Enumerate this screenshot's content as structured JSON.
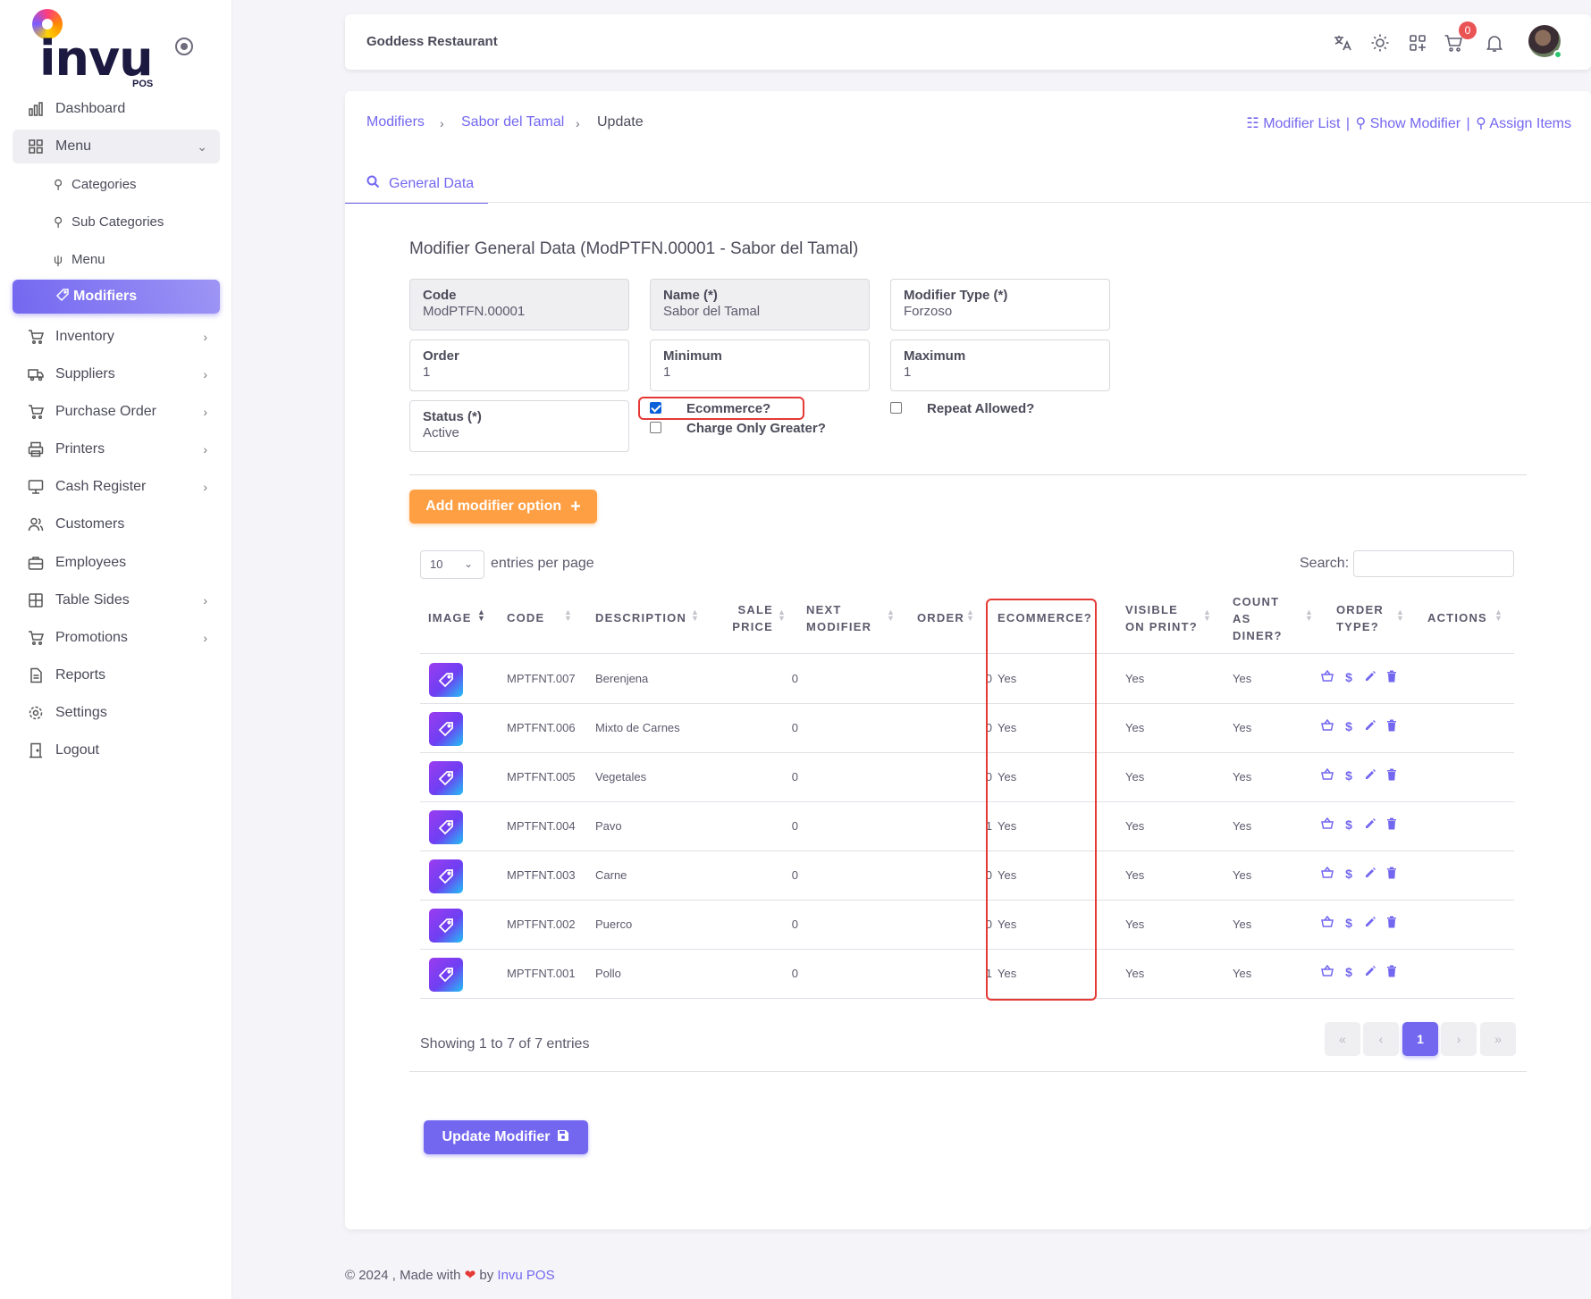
{
  "app": {
    "logo_text": "invu",
    "logo_sub": "POS",
    "restaurant": "Goddess Restaurant",
    "cart_count": "0"
  },
  "sidebar": {
    "items": [
      {
        "label": "Dashboard",
        "icon": "chart-icon"
      },
      {
        "label": "Menu",
        "icon": "grid-icon"
      },
      {
        "label": "Categories",
        "icon": "sitemap-icon"
      },
      {
        "label": "Sub Categories",
        "icon": "sitemap-icon"
      },
      {
        "label": "Menu",
        "icon": "utensils-icon"
      },
      {
        "label": "Modifiers",
        "icon": "tag-icon"
      },
      {
        "label": "Inventory",
        "icon": "cart-icon"
      },
      {
        "label": "Suppliers",
        "icon": "truck-icon"
      },
      {
        "label": "Purchase Order",
        "icon": "cart-icon"
      },
      {
        "label": "Printers",
        "icon": "printer-icon"
      },
      {
        "label": "Cash Register",
        "icon": "register-icon"
      },
      {
        "label": "Customers",
        "icon": "users-icon"
      },
      {
        "label": "Employees",
        "icon": "briefcase-icon"
      },
      {
        "label": "Table Sides",
        "icon": "table-icon"
      },
      {
        "label": "Promotions",
        "icon": "cart-icon"
      },
      {
        "label": "Reports",
        "icon": "file-icon"
      },
      {
        "label": "Settings",
        "icon": "gear-icon"
      },
      {
        "label": "Logout",
        "icon": "door-icon"
      }
    ]
  },
  "breadcrumb": {
    "first": "Modifiers",
    "second": "Sabor del Tamal",
    "current": "Update"
  },
  "toplinks": {
    "list": "Modifier List",
    "show": "Show Modifier",
    "assign": "Assign Items",
    "separator": "|"
  },
  "tab": {
    "label": "General Data"
  },
  "section_title": "Modifier General Data (ModPTFN.00001 - Sabor del Tamal)",
  "form": {
    "code": {
      "label": "Code",
      "value": "ModPTFN.00001"
    },
    "name": {
      "label": "Name (*)",
      "value": "Sabor del Tamal"
    },
    "type": {
      "label": "Modifier Type (*)",
      "value": "Forzoso"
    },
    "order": {
      "label": "Order",
      "value": "1"
    },
    "minimum": {
      "label": "Minimum",
      "value": "1"
    },
    "maximum": {
      "label": "Maximum",
      "value": "1"
    },
    "status": {
      "label": "Status (*)",
      "value": "Active"
    },
    "ecommerce": {
      "label": "Ecommerce?",
      "checked": true
    },
    "charge_only_greater": {
      "label": "Charge Only Greater?",
      "checked": false
    },
    "repeat_allowed": {
      "label": "Repeat Allowed?",
      "checked": false
    }
  },
  "add_option_button": "Add modifier option",
  "table": {
    "entries_value": "10",
    "entries_label": "entries per page",
    "search_label": "Search:",
    "headers": {
      "image": "IMAGE",
      "code": "CODE",
      "description": "DESCRIPTION",
      "sale_price_1": "SALE",
      "sale_price_2": "PRICE",
      "next_modifier_1": "NEXT",
      "next_modifier_2": "MODIFIER",
      "order": "ORDER",
      "ecommerce": "ECOMMERCE?",
      "visible_1": "VISIBLE",
      "visible_2": "ON PRINT?",
      "count_1": "COUNT",
      "count_2": "AS",
      "count_3": "DINER?",
      "order_type_1": "ORDER",
      "order_type_2": "TYPE?",
      "actions": "ACTIONS"
    },
    "rows": [
      {
        "code": "MPTFNT.007",
        "description": "Berenjena",
        "sale_price": "0",
        "order": "0",
        "ecommerce": "Yes",
        "visible": "Yes",
        "count": "Yes"
      },
      {
        "code": "MPTFNT.006",
        "description": "Mixto de Carnes",
        "sale_price": "0",
        "order": "0",
        "ecommerce": "Yes",
        "visible": "Yes",
        "count": "Yes"
      },
      {
        "code": "MPTFNT.005",
        "description": "Vegetales",
        "sale_price": "0",
        "order": "0",
        "ecommerce": "Yes",
        "visible": "Yes",
        "count": "Yes"
      },
      {
        "code": "MPTFNT.004",
        "description": "Pavo",
        "sale_price": "0",
        "order": "1",
        "ecommerce": "Yes",
        "visible": "Yes",
        "count": "Yes"
      },
      {
        "code": "MPTFNT.003",
        "description": "Carne",
        "sale_price": "0",
        "order": "0",
        "ecommerce": "Yes",
        "visible": "Yes",
        "count": "Yes"
      },
      {
        "code": "MPTFNT.002",
        "description": "Puerco",
        "sale_price": "0",
        "order": "0",
        "ecommerce": "Yes",
        "visible": "Yes",
        "count": "Yes"
      },
      {
        "code": "MPTFNT.001",
        "description": "Pollo",
        "sale_price": "0",
        "order": "1",
        "ecommerce": "Yes",
        "visible": "Yes",
        "count": "Yes"
      }
    ],
    "showing": "Showing 1 to 7 of 7 entries",
    "pagination": {
      "first": "«",
      "prev": "‹",
      "current": "1",
      "next": "›",
      "last": "»"
    }
  },
  "update_button": "Update Modifier",
  "footer": {
    "prefix": "© 2024 , Made with",
    "by": "by",
    "brand": "Invu POS"
  },
  "colors": {
    "primary": "#7367f0",
    "orange": "#ff9f43",
    "highlight": "#e53935"
  }
}
